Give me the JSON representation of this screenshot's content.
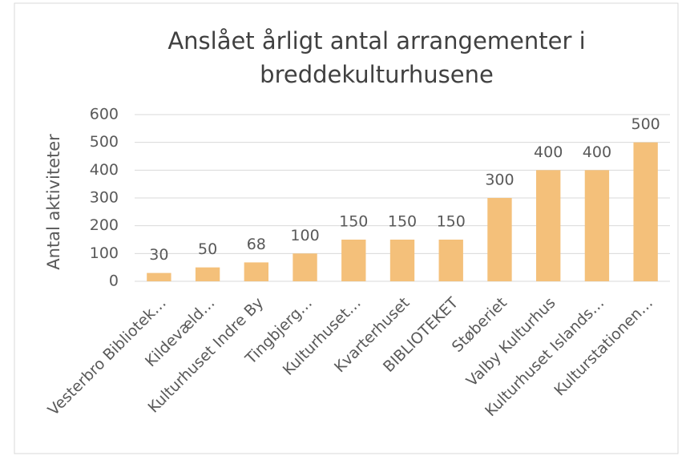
{
  "chart_data": {
    "type": "bar",
    "title": "Anslået årligt antal arrangementer i breddekulturhusene",
    "y_label": "Antal aktiviteter",
    "categories": [
      "Vesterbro Bibliotek…",
      "Kildevæld…",
      "Kulturhuset Indre By",
      "Tingbjerg…",
      "Kulturhuset…",
      "Kvarterhuset",
      "BIBLIOTEKET",
      "Støberiet",
      "Valby Kulturhus",
      "Kulturhuset Islands…",
      "Kulturstationen…"
    ],
    "values": [
      30,
      50,
      68,
      100,
      150,
      150,
      150,
      300,
      400,
      400,
      500
    ],
    "color": "#f4c07a",
    "ylim": [
      0,
      600
    ],
    "yticks": [
      0,
      100,
      200,
      300,
      400,
      500,
      600
    ],
    "grid": true
  }
}
